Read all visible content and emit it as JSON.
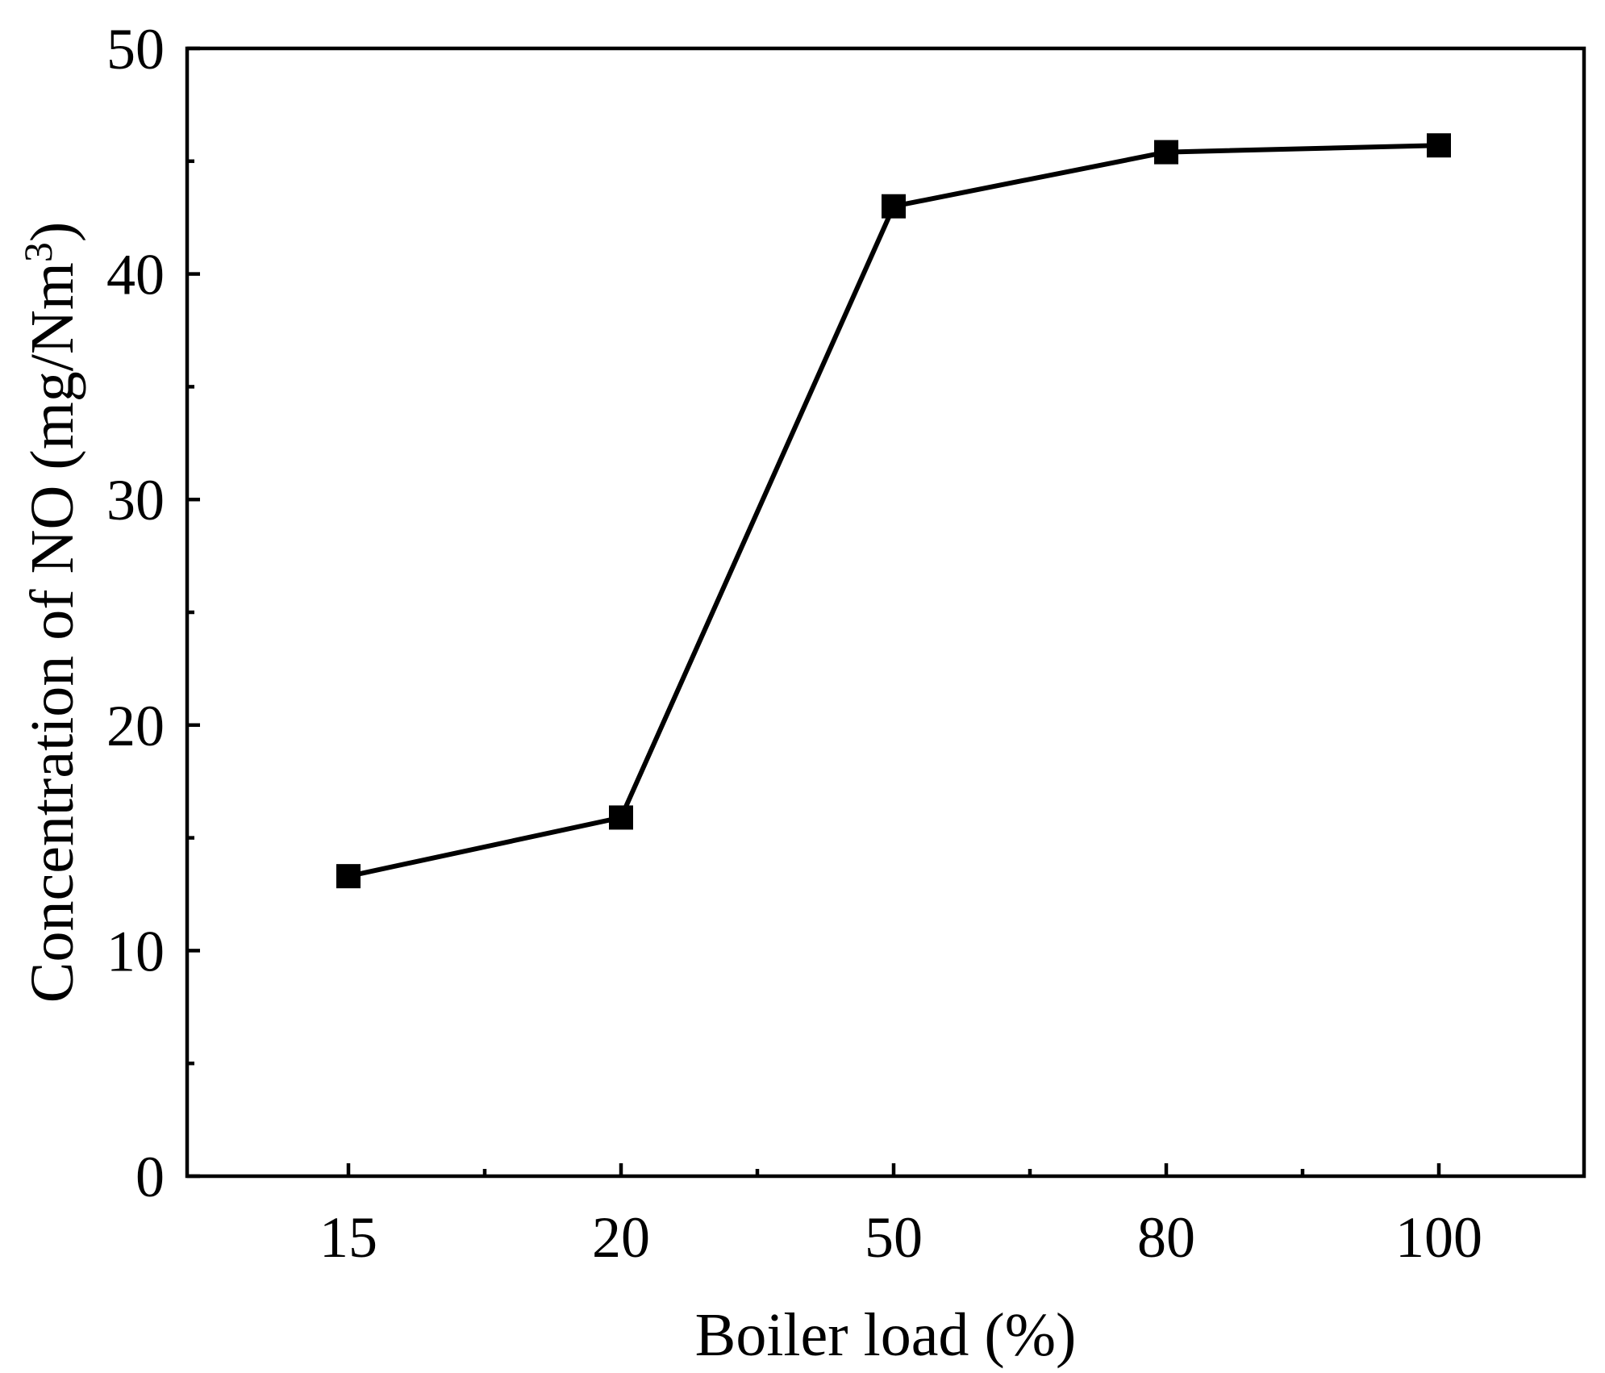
{
  "chart_data": {
    "type": "line",
    "title": "",
    "xlabel": "Boiler load (%)",
    "ylabel": "Concentration of  NO (mg/Nm",
    "ylabel_superscript": "3",
    "ylabel_close": ")",
    "categories": [
      "15",
      "20",
      "50",
      "80",
      "100"
    ],
    "series": [
      {
        "values": [
          13.3,
          15.9,
          43.0,
          45.4,
          45.7
        ],
        "marker": "square",
        "color": "#000000"
      }
    ],
    "ylim": [
      0,
      50
    ],
    "yticks": [
      "0",
      "10",
      "20",
      "30",
      "40",
      "50"
    ],
    "y_minor_ticks": true,
    "x_minor_ticks": true,
    "grid": false,
    "legend": "none"
  }
}
